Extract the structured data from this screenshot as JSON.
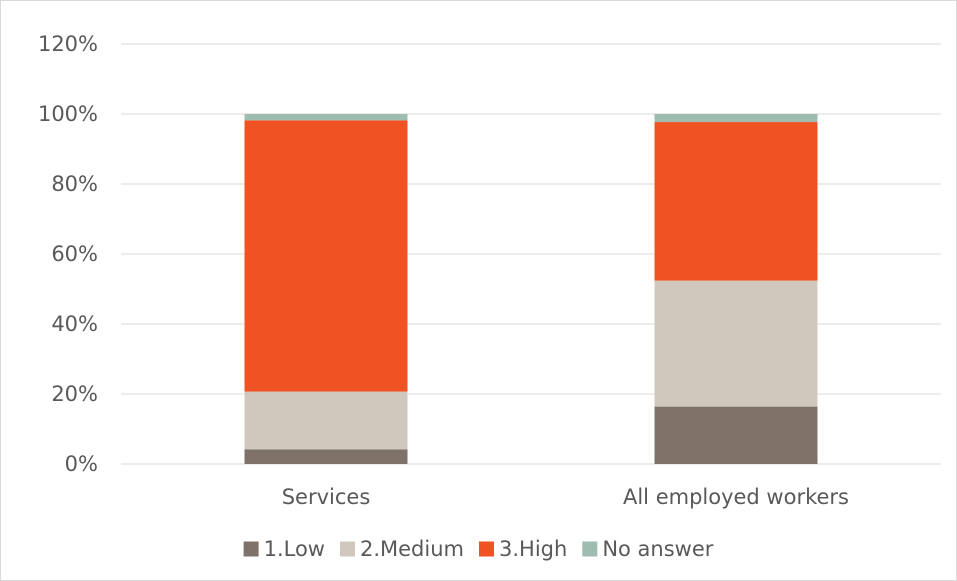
{
  "chart_data": {
    "type": "bar",
    "stacked": true,
    "categories": [
      "Services",
      "All employed workers"
    ],
    "series": [
      {
        "name": "1.Low",
        "color": "#7f7369",
        "values": [
          4.2,
          16.4
        ]
      },
      {
        "name": "2.Medium",
        "color": "#d0c8bc",
        "values": [
          16.5,
          36.0
        ]
      },
      {
        "name": "3.High",
        "color": "#f05323",
        "values": [
          77.5,
          45.3
        ]
      },
      {
        "name": "No answer",
        "color": "#9fbcb0",
        "values": [
          1.8,
          2.3
        ]
      }
    ],
    "ylim": [
      0,
      120
    ],
    "yticks": [
      0,
      20,
      40,
      60,
      80,
      100,
      120
    ],
    "ytick_labels": [
      "0%",
      "20%",
      "40%",
      "60%",
      "80%",
      "100%",
      "120%"
    ],
    "grid": true,
    "legend_position": "bottom"
  }
}
